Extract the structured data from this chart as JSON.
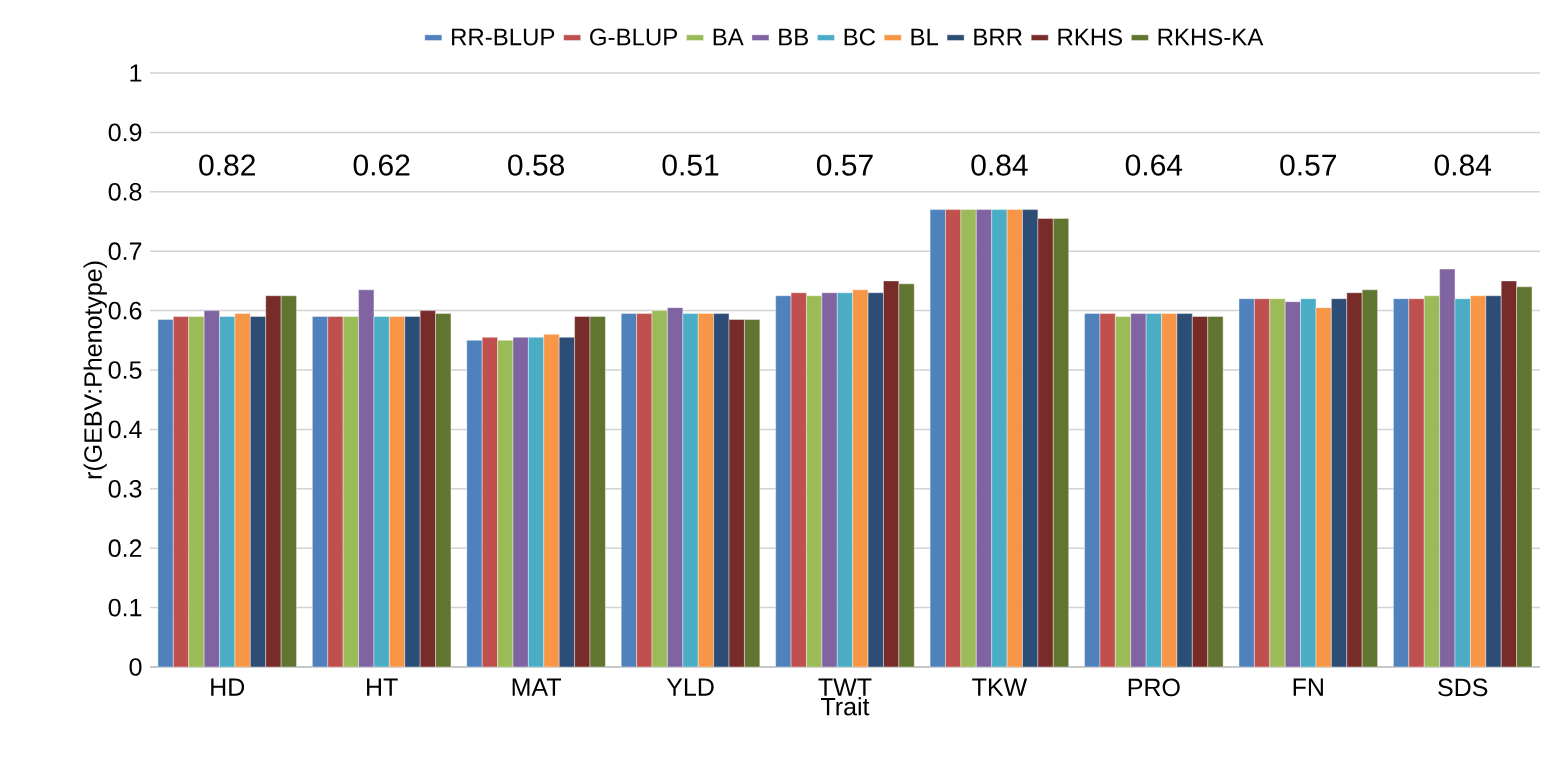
{
  "chart_data": {
    "type": "bar",
    "xlabel": "Trait",
    "ylabel": "r(GEBV:Phenotype)",
    "categories": [
      "HD",
      "HT",
      "MAT",
      "YLD",
      "TWT",
      "TKW",
      "PRO",
      "FN",
      "SDS"
    ],
    "series": [
      {
        "name": "RR-BLUP",
        "color": "#4f81bd",
        "values": [
          0.585,
          0.59,
          0.55,
          0.595,
          0.625,
          0.77,
          0.595,
          0.62,
          0.62
        ]
      },
      {
        "name": "G-BLUP",
        "color": "#c0504d",
        "values": [
          0.59,
          0.59,
          0.555,
          0.595,
          0.63,
          0.77,
          0.595,
          0.62,
          0.62
        ]
      },
      {
        "name": "BA",
        "color": "#9bbb59",
        "values": [
          0.59,
          0.59,
          0.55,
          0.6,
          0.625,
          0.77,
          0.59,
          0.62,
          0.625
        ]
      },
      {
        "name": "BB",
        "color": "#8064a2",
        "values": [
          0.6,
          0.635,
          0.555,
          0.605,
          0.63,
          0.77,
          0.595,
          0.615,
          0.67
        ]
      },
      {
        "name": "BC",
        "color": "#4bacc6",
        "values": [
          0.59,
          0.59,
          0.555,
          0.595,
          0.63,
          0.77,
          0.595,
          0.62,
          0.62
        ]
      },
      {
        "name": "BL",
        "color": "#f79646",
        "values": [
          0.595,
          0.59,
          0.56,
          0.595,
          0.635,
          0.77,
          0.595,
          0.605,
          0.625
        ]
      },
      {
        "name": "BRR",
        "color": "#2c4d75",
        "values": [
          0.59,
          0.59,
          0.555,
          0.595,
          0.63,
          0.77,
          0.595,
          0.62,
          0.625
        ]
      },
      {
        "name": "RKHS",
        "color": "#772c2a",
        "values": [
          0.625,
          0.6,
          0.59,
          0.585,
          0.65,
          0.755,
          0.59,
          0.63,
          0.65
        ]
      },
      {
        "name": "RKHS-KA",
        "color": "#5f7530",
        "values": [
          0.625,
          0.595,
          0.59,
          0.585,
          0.645,
          0.755,
          0.59,
          0.635,
          0.64
        ]
      }
    ],
    "ylim": [
      0,
      1
    ],
    "yticks": [
      0,
      0.1,
      0.2,
      0.3,
      0.4,
      0.5,
      0.6,
      0.7,
      0.8,
      0.9,
      1
    ],
    "grid": "y",
    "legend": "top",
    "annotations": [
      "0.82",
      "0.62",
      "0.58",
      "0.51",
      "0.57",
      "0.84",
      "0.64",
      "0.57",
      "0.84"
    ]
  }
}
